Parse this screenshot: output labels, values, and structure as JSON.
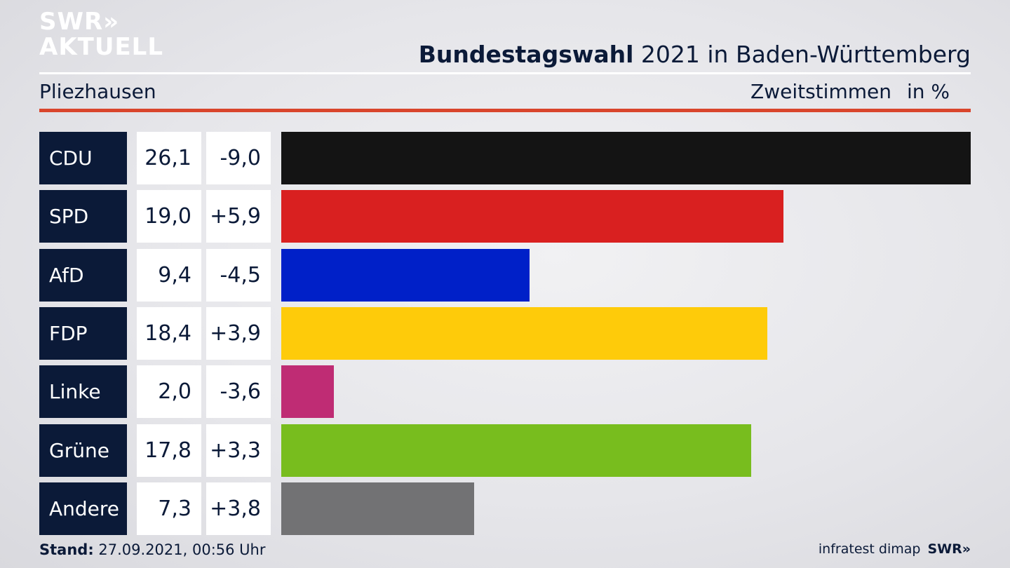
{
  "logo": {
    "line1": "SWR»",
    "line2": "AKTUELL"
  },
  "header": {
    "title_bold": "Bundestagswahl",
    "title_rest": " 2021 in Baden-Württemberg",
    "location": "Pliezhausen",
    "measure": "Zweitstimmen",
    "unit": "in %"
  },
  "chart_data": {
    "type": "bar",
    "orientation": "horizontal",
    "categories": [
      "CDU",
      "SPD",
      "AfD",
      "FDP",
      "Linke",
      "Grüne",
      "Andere"
    ],
    "series": [
      {
        "values": [
          26.1,
          19.0,
          9.4,
          18.4,
          2.0,
          17.8,
          7.3
        ]
      }
    ],
    "value_labels": [
      "26,1",
      "19,0",
      "9,4",
      "18,4",
      "2,0",
      "17,8",
      "7,3"
    ],
    "change_labels": [
      "-9,0",
      "+5,9",
      "-4,5",
      "+3,9",
      "-3,6",
      "+3,3",
      "+3,8"
    ],
    "changes": [
      -9.0,
      5.9,
      -4.5,
      3.9,
      -3.6,
      3.3,
      3.8
    ],
    "colors": [
      "#141414",
      "#d92020",
      "#0020c8",
      "#fecb0a",
      "#bf2c74",
      "#78bd1e",
      "#727274"
    ],
    "xlim": [
      0,
      26.1
    ]
  },
  "footer": {
    "stand_label": "Stand:",
    "stand_value": " 27.09.2021, 00:56 Uhr",
    "source": "infratest dimap",
    "brand": "SWR»"
  }
}
